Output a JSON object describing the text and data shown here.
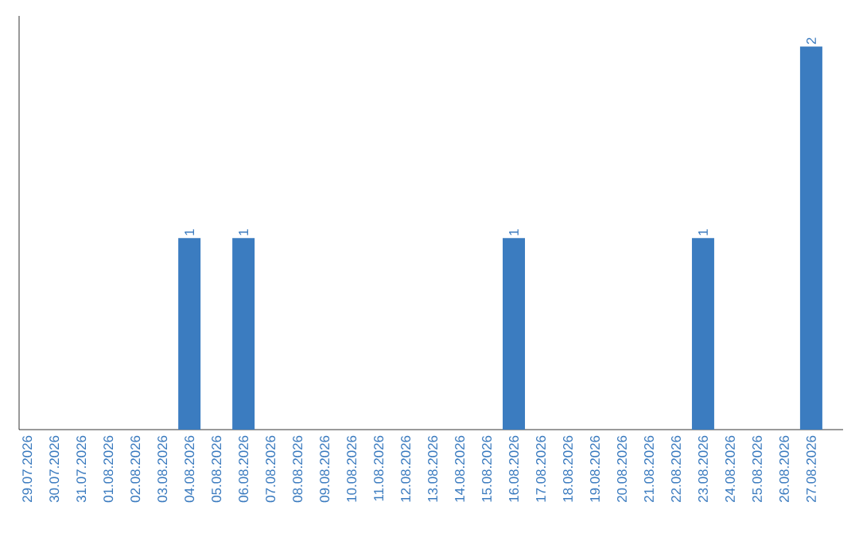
{
  "chart_data": {
    "type": "bar",
    "categories": [
      "29.07.2026",
      "30.07.2026",
      "31.07.2026",
      "01.08.2026",
      "02.08.2026",
      "03.08.2026",
      "04.08.2026",
      "05.08.2026",
      "06.08.2026",
      "07.08.2026",
      "08.08.2026",
      "09.08.2026",
      "10.08.2026",
      "11.08.2026",
      "12.08.2026",
      "13.08.2026",
      "14.08.2026",
      "15.08.2026",
      "16.08.2026",
      "17.08.2026",
      "18.08.2026",
      "19.08.2026",
      "20.08.2026",
      "21.08.2026",
      "22.08.2026",
      "23.08.2026",
      "24.08.2026",
      "25.08.2026",
      "26.08.2026",
      "27.08.2026"
    ],
    "values": [
      0,
      0,
      0,
      0,
      0,
      0,
      1,
      0,
      1,
      0,
      0,
      0,
      0,
      0,
      0,
      0,
      0,
      0,
      1,
      0,
      0,
      0,
      0,
      0,
      0,
      1,
      0,
      0,
      0,
      2
    ],
    "value_labels": [
      null,
      null,
      null,
      null,
      null,
      null,
      "1",
      null,
      "1",
      null,
      null,
      null,
      null,
      null,
      null,
      null,
      null,
      null,
      "1",
      null,
      null,
      null,
      null,
      null,
      null,
      "1",
      null,
      null,
      null,
      "2"
    ],
    "color": "#3b7cc0"
  }
}
